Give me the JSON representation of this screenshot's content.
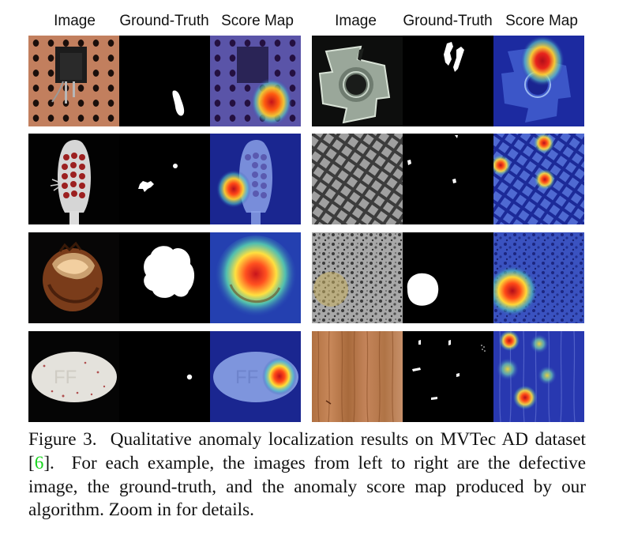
{
  "headers": {
    "left": [
      "Image",
      "Ground-Truth",
      "Score Map"
    ],
    "right": [
      "Image",
      "Ground-Truth",
      "Score Map"
    ]
  },
  "examples": [
    {
      "category": "transistor",
      "column": "left",
      "row": 1
    },
    {
      "category": "metal_nut",
      "column": "right",
      "row": 1
    },
    {
      "category": "toothbrush",
      "column": "left",
      "row": 2
    },
    {
      "category": "grid",
      "column": "right",
      "row": 2
    },
    {
      "category": "hazelnut",
      "column": "left",
      "row": 3
    },
    {
      "category": "tile",
      "column": "right",
      "row": 3
    },
    {
      "category": "pill",
      "column": "left",
      "row": 4
    },
    {
      "category": "wood",
      "column": "right",
      "row": 4
    }
  ],
  "caption": {
    "label": "Figure 3.",
    "text_before_ref": "  Qualitative anomaly localization results on MVTec AD dataset [",
    "ref": "6",
    "text_after_ref": "].  For each example, the images from left to right are the defective image, the ground-truth, and the anomaly score map produced by our algorithm. Zoom in for details."
  },
  "colors": {
    "reference_link": "#17d51d",
    "score_map_low": "#1a2a9e",
    "score_map_high": "#d0101a"
  }
}
